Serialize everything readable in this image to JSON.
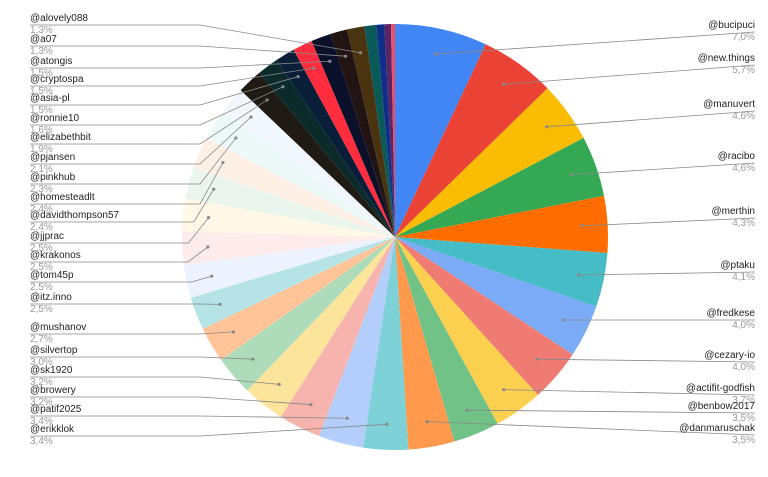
{
  "chart_data": {
    "type": "pie",
    "categories": [
      "@bucipuci",
      "@new.things",
      "@manuvert",
      "@racibo",
      "@merthin",
      "@ptaku",
      "@fredkese",
      "@cezary-io",
      "@actifit-godfish",
      "@benbow2017",
      "@danmaruschak",
      "@erikklok",
      "@patif2025",
      "@browery",
      "@sk1920",
      "@silvertop",
      "@mushanov",
      "@itz.inno",
      "@tom45p",
      "@krakonos",
      "@jjprac",
      "@davidthompson57",
      "@homesteadlt",
      "@pinkhub",
      "@pjansen",
      "@elizabethbit",
      "@ronnie10",
      "@asia-pl",
      "@cryptospa",
      "@atongis",
      "@a07",
      "@alovely088",
      null,
      null,
      null,
      null
    ],
    "values": [
      7.0,
      5.7,
      4.6,
      4.6,
      4.3,
      4.1,
      4.0,
      4.0,
      3.7,
      3.5,
      3.5,
      3.4,
      3.4,
      3.2,
      3.2,
      3.0,
      2.7,
      2.5,
      2.5,
      2.5,
      2.5,
      2.4,
      2.4,
      2.3,
      2.1,
      1.9,
      1.6,
      1.5,
      1.5,
      1.5,
      1.3,
      1.3,
      0.9,
      0.6,
      0.5,
      0.3
    ],
    "value_labels": [
      "7,0%",
      "5,7%",
      "4,6%",
      "4,6%",
      "4,3%",
      "4,1%",
      "4,0%",
      "4,0%",
      "3,7%",
      "3,5%",
      "3,5%",
      "3,4%",
      "3,4%",
      "3,2%",
      "3,2%",
      "3,0%",
      "2,7%",
      "2,5%",
      "2,5%",
      "2,5%",
      "2,5%",
      "2,4%",
      "2,4%",
      "2,3%",
      "2,1%",
      "1,9%",
      "1,6%",
      "1,5%",
      "1,5%",
      "1,5%",
      "1,3%",
      "1,3%",
      null,
      null,
      null,
      null
    ],
    "colors": [
      "#4285f4",
      "#ea4335",
      "#fbbc04",
      "#34a853",
      "#ff6d01",
      "#46bdc6",
      "#7baaf7",
      "#f07b72",
      "#fcd04f",
      "#71c287",
      "#ff994d",
      "#7ed1d7",
      "#b3cefb",
      "#f7b4ae",
      "#fde49b",
      "#aedcba",
      "#ffc599",
      "#b5e3e6",
      "#ecf3fe",
      "#fdeceb",
      "#fff8e6",
      "#eaf6ed",
      "#fff0e6",
      "#edf8f9",
      "#f2f7fe",
      "#1f1a14",
      "#0b2b2a",
      "#0a1e3a",
      "#ff2d3d",
      "#0a0f2a",
      "#231414",
      "#4a3410",
      "#0b5a5a",
      "#0f2e8a",
      "#5a2466",
      "#e8506a"
    ]
  }
}
